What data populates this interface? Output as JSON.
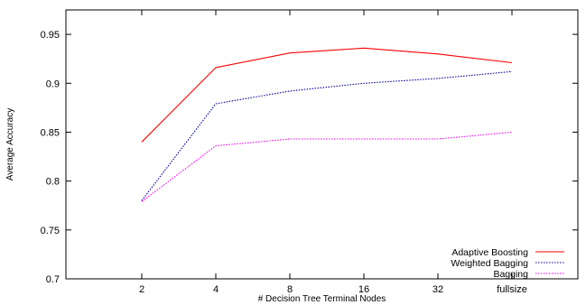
{
  "chart_data": {
    "type": "line",
    "title": "",
    "xlabel": "# Decision Tree Terminal Nodes",
    "ylabel": "Average Accuracy",
    "categories": [
      "2",
      "4",
      "8",
      "16",
      "32",
      "fullsize"
    ],
    "ylim": [
      0.7,
      0.975
    ],
    "yticks": [
      0.7,
      0.75,
      0.8,
      0.85,
      0.9,
      0.95
    ],
    "ytick_labels": [
      "0.7",
      "0.75",
      "0.8",
      "0.85",
      "0.9",
      "0.95"
    ],
    "grid": false,
    "legend_position": "bottom-right",
    "series": [
      {
        "name": "Adaptive Boosting",
        "values": [
          0.84,
          0.916,
          0.931,
          0.936,
          0.93,
          0.921
        ],
        "color": "#ff0000",
        "dash": "solid"
      },
      {
        "name": "Weighted Bagging",
        "values": [
          0.78,
          0.879,
          0.892,
          0.9,
          0.905,
          0.912
        ],
        "color": "#0000a0",
        "dash": "dotted"
      },
      {
        "name": "Bagging",
        "values": [
          0.779,
          0.836,
          0.843,
          0.843,
          0.843,
          0.85
        ],
        "color": "#ff00ff",
        "dash": "dotted"
      }
    ]
  }
}
